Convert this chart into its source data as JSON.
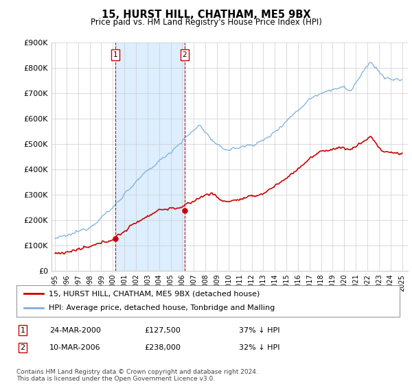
{
  "title": "15, HURST HILL, CHATHAM, ME5 9BX",
  "subtitle": "Price paid vs. HM Land Registry's House Price Index (HPI)",
  "ylim": [
    0,
    900000
  ],
  "yticks": [
    0,
    100000,
    200000,
    300000,
    400000,
    500000,
    600000,
    700000,
    800000,
    900000
  ],
  "ytick_labels": [
    "£0",
    "£100K",
    "£200K",
    "£300K",
    "£400K",
    "£500K",
    "£600K",
    "£700K",
    "£800K",
    "£900K"
  ],
  "xlim_start": 1994.7,
  "xlim_end": 2025.5,
  "transaction1": {
    "label": "1",
    "date_num": 2000.23,
    "price": 127500,
    "text_date": "24-MAR-2000",
    "text_price": "£127,500",
    "text_pct": "37% ↓ HPI"
  },
  "transaction2": {
    "label": "2",
    "date_num": 2006.2,
    "price": 238000,
    "text_date": "10-MAR-2006",
    "text_price": "£238,000",
    "text_pct": "32% ↓ HPI"
  },
  "line_color_price": "#cc0000",
  "line_color_hpi": "#7aafdd",
  "shade_color": "#ddeeff",
  "legend_label_price": "15, HURST HILL, CHATHAM, ME5 9BX (detached house)",
  "legend_label_hpi": "HPI: Average price, detached house, Tonbridge and Malling",
  "footer": "Contains HM Land Registry data © Crown copyright and database right 2024.\nThis data is licensed under the Open Government Licence v3.0.",
  "background_color": "#ffffff",
  "plot_bg_color": "#ffffff",
  "grid_color": "#cccccc"
}
